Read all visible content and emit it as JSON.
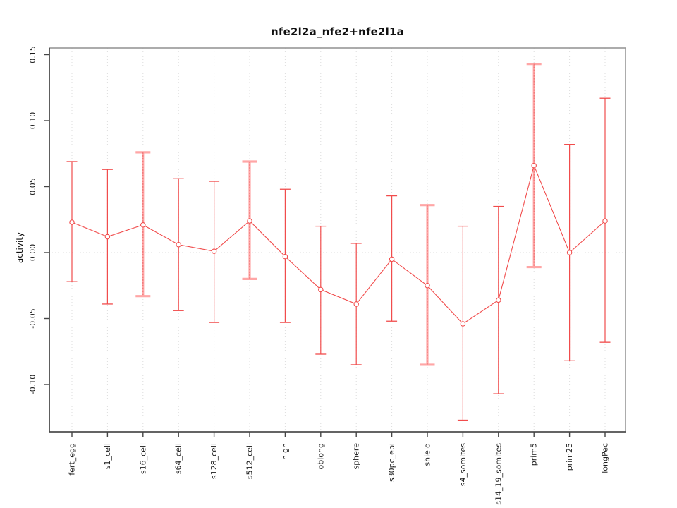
{
  "chart_data": {
    "type": "line",
    "subtype": "errorbar-line-plot",
    "title": "nfe2l2a_nfe2+nfe2l1a",
    "xlabel": "",
    "ylabel": "activity",
    "ylim": [
      -0.135,
      0.155
    ],
    "grid": "dotted vertical gridline at each category; dotted horizontal line at y=0",
    "legend": "none",
    "yticks": [
      0.15,
      0.1,
      0.05,
      0.0,
      -0.05,
      -0.1
    ],
    "ytick_labels": [
      "0.15",
      "0.10",
      "0.05",
      "0.00",
      "-0.05",
      "-0.10"
    ],
    "categories": [
      "fert_egg",
      "s1_cell",
      "s16_cell",
      "s64_cell",
      "s128_cell",
      "s512_cell",
      "high",
      "oblong",
      "sphere",
      "s30pc_epi",
      "shield",
      "s4_somites",
      "s14_19_somites",
      "prim5",
      "prim25",
      "longPec"
    ],
    "series": [
      {
        "name": "activity",
        "marker": "open-circle",
        "points": [
          {
            "label": "fert_egg",
            "value": 0.023,
            "hi": 0.069,
            "lo": -0.022,
            "bar": "thin"
          },
          {
            "label": "s1_cell",
            "value": 0.012,
            "hi": 0.063,
            "lo": -0.039,
            "bar": "thin"
          },
          {
            "label": "s16_cell",
            "value": 0.021,
            "hi": 0.076,
            "lo": -0.033,
            "bar": "thick"
          },
          {
            "label": "s64_cell",
            "value": 0.006,
            "hi": 0.056,
            "lo": -0.044,
            "bar": "thin"
          },
          {
            "label": "s128_cell",
            "value": 0.001,
            "hi": 0.054,
            "lo": -0.053,
            "bar": "thin"
          },
          {
            "label": "s512_cell",
            "value": 0.024,
            "hi": 0.069,
            "lo": -0.02,
            "bar": "thick"
          },
          {
            "label": "high",
            "value": -0.003,
            "hi": 0.048,
            "lo": -0.053,
            "bar": "thin"
          },
          {
            "label": "oblong",
            "value": -0.028,
            "hi": 0.02,
            "lo": -0.077,
            "bar": "thin"
          },
          {
            "label": "sphere",
            "value": -0.039,
            "hi": 0.007,
            "lo": -0.085,
            "bar": "thin"
          },
          {
            "label": "s30pc_epi",
            "value": -0.005,
            "hi": 0.043,
            "lo": -0.052,
            "bar": "thin"
          },
          {
            "label": "shield",
            "value": -0.025,
            "hi": 0.036,
            "lo": -0.085,
            "bar": "thick"
          },
          {
            "label": "s4_somites",
            "value": -0.054,
            "hi": 0.02,
            "lo": -0.127,
            "bar": "thin"
          },
          {
            "label": "s14_19_somites",
            "value": -0.036,
            "hi": 0.035,
            "lo": -0.107,
            "bar": "thin"
          },
          {
            "label": "prim5",
            "value": 0.066,
            "hi": 0.143,
            "lo": -0.011,
            "bar": "thick"
          },
          {
            "label": "prim25",
            "value": 0.0,
            "hi": 0.082,
            "lo": -0.082,
            "bar": "thin"
          },
          {
            "label": "longPec",
            "value": 0.024,
            "hi": 0.117,
            "lo": -0.068,
            "bar": "thin"
          }
        ]
      }
    ],
    "colors": {
      "point": "#f14c4c",
      "line": "#f14c4c",
      "bar_thin": "#f14c4c",
      "bar_thick": "#ffa6a6",
      "bar_thick_inner": "#e05252",
      "grid": "#dcdcdc",
      "zero_line": "#dcdcdc",
      "box": "#989898",
      "axis": "#454545",
      "text": "#1a1a1a"
    }
  }
}
